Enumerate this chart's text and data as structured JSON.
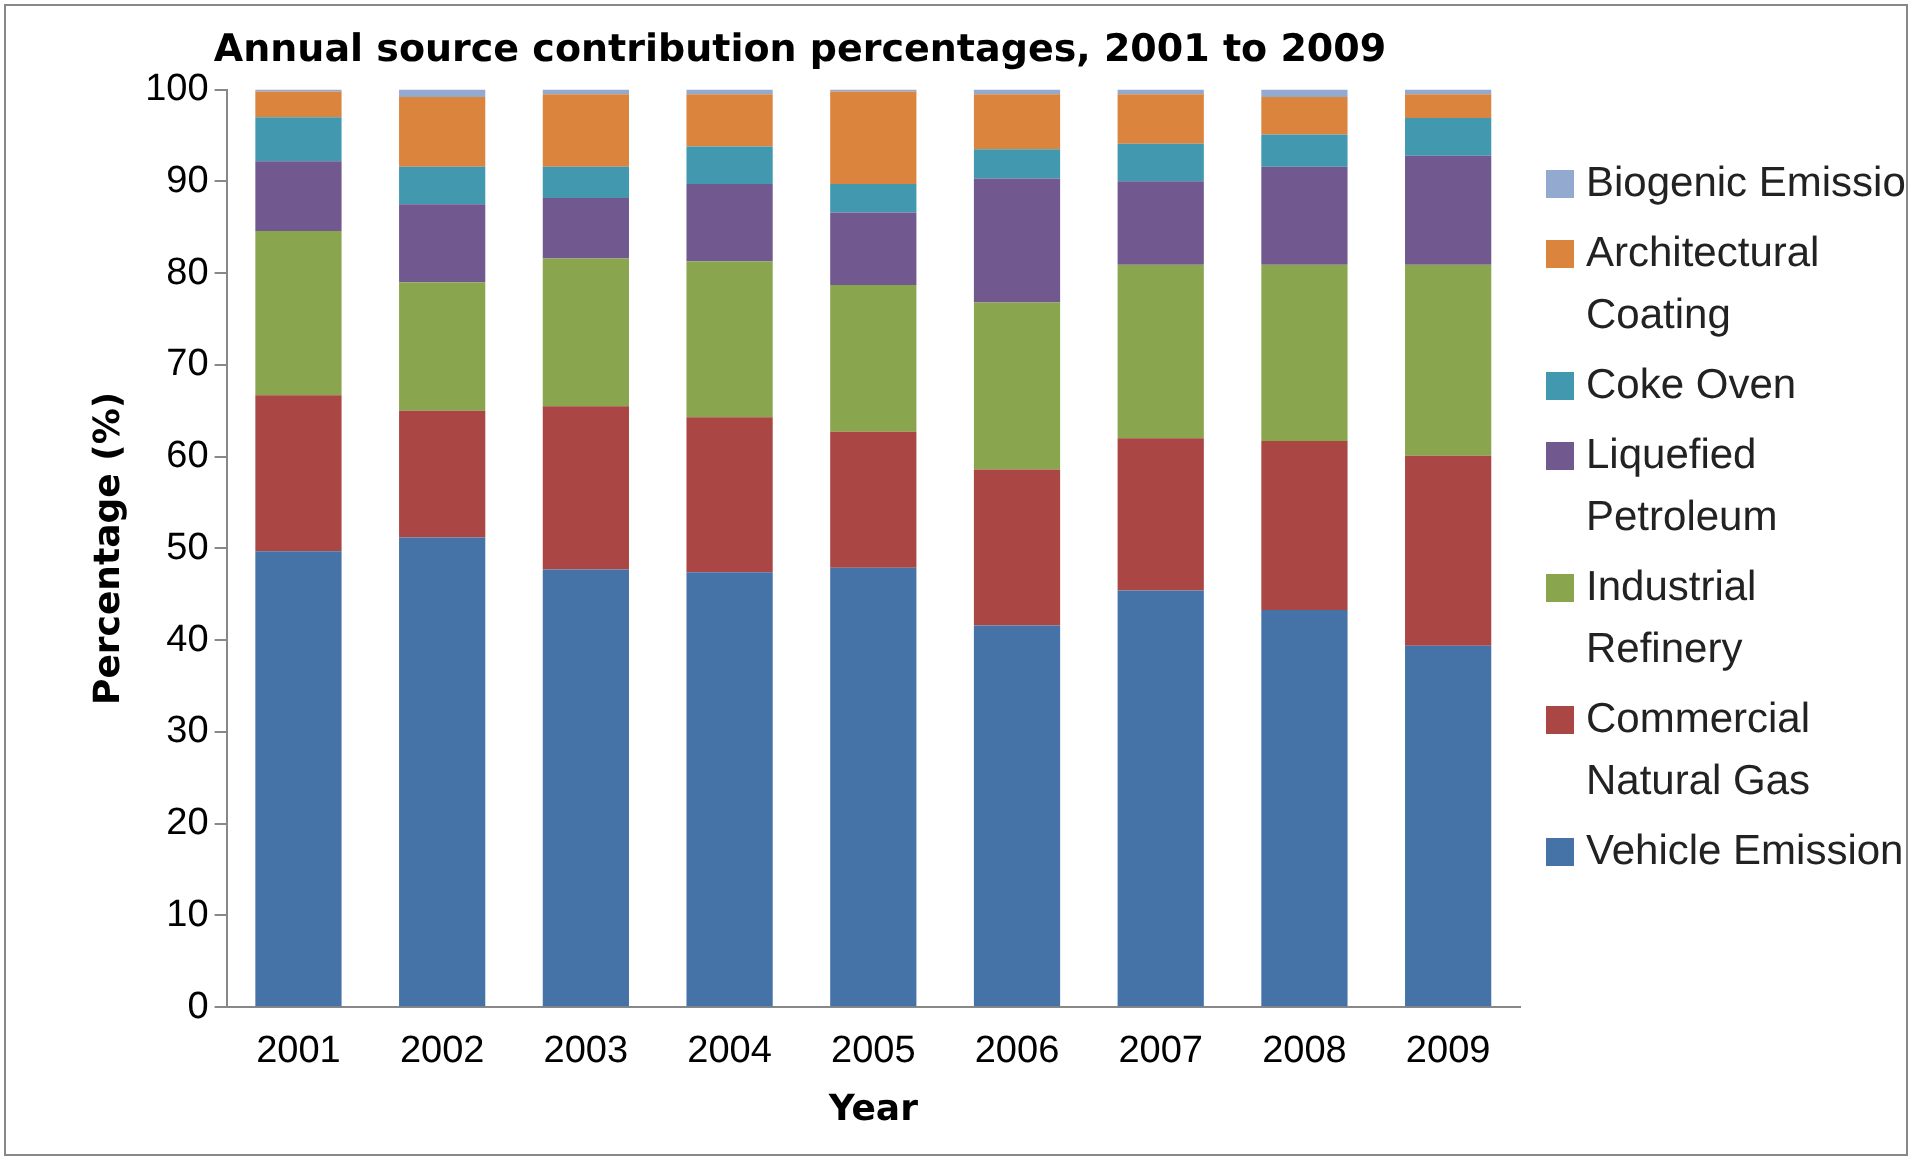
{
  "chart_data": {
    "type": "bar",
    "title": "Annual source contribution percentages, 2001 to 2009",
    "xlabel": "Year",
    "ylabel": "Percentage (%)",
    "categories": [
      "2001",
      "2002",
      "2003",
      "2004",
      "2005",
      "2006",
      "2007",
      "2008",
      "2009"
    ],
    "stacked": true,
    "ylim": [
      0,
      100
    ],
    "yticks": [
      0,
      10,
      20,
      30,
      40,
      50,
      60,
      70,
      80,
      90,
      100
    ],
    "grid": false,
    "legend": "right",
    "series": [
      {
        "name": "Vehicle Emission",
        "color": "#4572a7",
        "values": [
          49.7,
          51.2,
          47.7,
          47.4,
          47.9,
          41.6,
          45.4,
          43.3,
          39.4
        ]
      },
      {
        "name": "Commercial Natural Gas",
        "color": "#aa4643",
        "values": [
          17.0,
          13.8,
          17.8,
          16.9,
          14.8,
          17.0,
          16.6,
          18.4,
          20.7
        ]
      },
      {
        "name": "Industrial Refinery",
        "color": "#89a54e",
        "values": [
          17.9,
          14.0,
          16.1,
          17.0,
          16.0,
          18.2,
          18.9,
          19.2,
          20.8
        ]
      },
      {
        "name": "Liquefied Petroleum",
        "color": "#71588f",
        "values": [
          7.6,
          8.5,
          6.6,
          8.4,
          7.9,
          13.5,
          9.1,
          10.7,
          11.9
        ]
      },
      {
        "name": "Coke Oven",
        "color": "#4198af",
        "values": [
          4.8,
          4.1,
          3.4,
          4.1,
          3.1,
          3.2,
          4.1,
          3.5,
          4.1
        ]
      },
      {
        "name": "Architectural Coating",
        "color": "#db843d",
        "values": [
          2.8,
          7.6,
          7.9,
          5.7,
          10.1,
          6.0,
          5.4,
          4.1,
          2.6
        ]
      },
      {
        "name": "Biogenic Emissio",
        "color": "#93a9cf",
        "values": [
          0.2,
          0.8,
          0.5,
          0.5,
          0.2,
          0.5,
          0.5,
          0.8,
          0.5
        ]
      }
    ]
  }
}
